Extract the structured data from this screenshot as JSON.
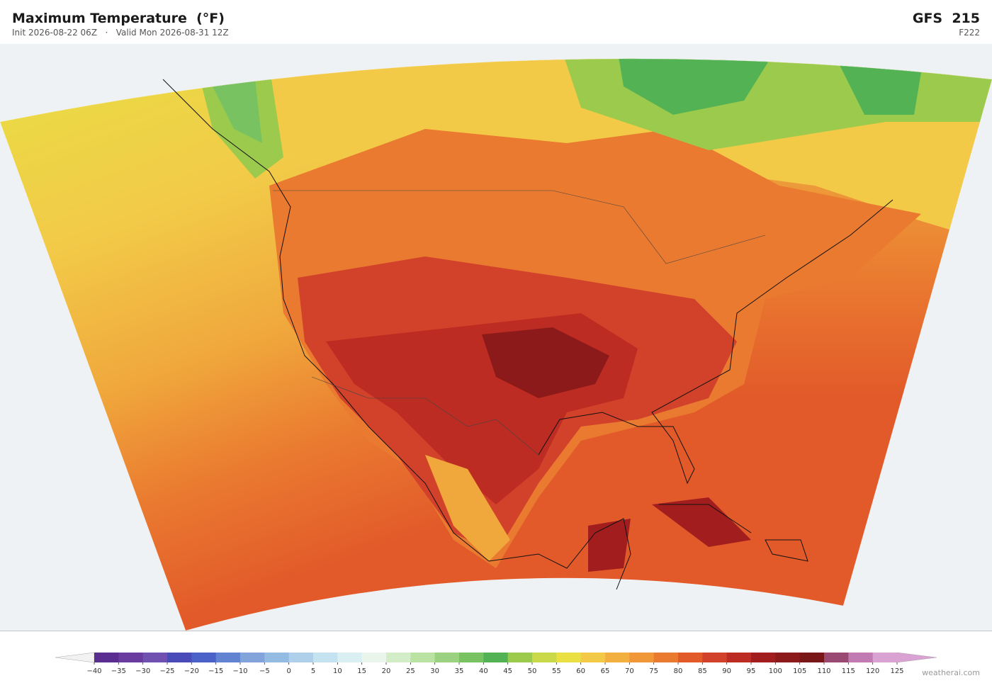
{
  "header": {
    "title": "Maximum Temperature  (°F)",
    "subtitle": "Init 2026-08-22 06Z   ·   Valid Mon 2026-08-31 12Z",
    "model": "GFS  215",
    "forecast_hour": "F222"
  },
  "colorbar": {
    "ticks": [
      {
        "value": -40,
        "label": "−40"
      },
      {
        "value": -35,
        "label": "−35"
      },
      {
        "value": -30,
        "label": "−30"
      },
      {
        "value": -25,
        "label": "−25"
      },
      {
        "value": -20,
        "label": "−20"
      },
      {
        "value": -15,
        "label": "−15"
      },
      {
        "value": -10,
        "label": "−10"
      },
      {
        "value": -5,
        "label": "−5"
      },
      0,
      5,
      10,
      15,
      20,
      25,
      30,
      35,
      40,
      45,
      50,
      55,
      60,
      65,
      70,
      75,
      80,
      85,
      90,
      95,
      100,
      105,
      110,
      115,
      120,
      125
    ],
    "colors": [
      "#5a2d91",
      "#6a3ca0",
      "#7050b0",
      "#4a4ab8",
      "#4a62c8",
      "#6282d2",
      "#82a4da",
      "#94bce2",
      "#aed0ea",
      "#c4e2ef",
      "#daeff2",
      "#eaf6ec",
      "#d2edc8",
      "#bae2a2",
      "#9ad282",
      "#78c262",
      "#52b254",
      "#9cca4c",
      "#cad94a",
      "#eae044",
      "#f2ca48",
      "#f2b040",
      "#f09838",
      "#ea7a30",
      "#e25a2a",
      "#d2422a",
      "#bc2c22",
      "#a21e1e",
      "#8c1a1a",
      "#781618",
      "#9a4a72",
      "#c27ab2",
      "#daa2d2"
    ],
    "under_color": "#f2f2f2",
    "over_color": "#daa2d2"
  },
  "watermark": "weatherai.com"
}
